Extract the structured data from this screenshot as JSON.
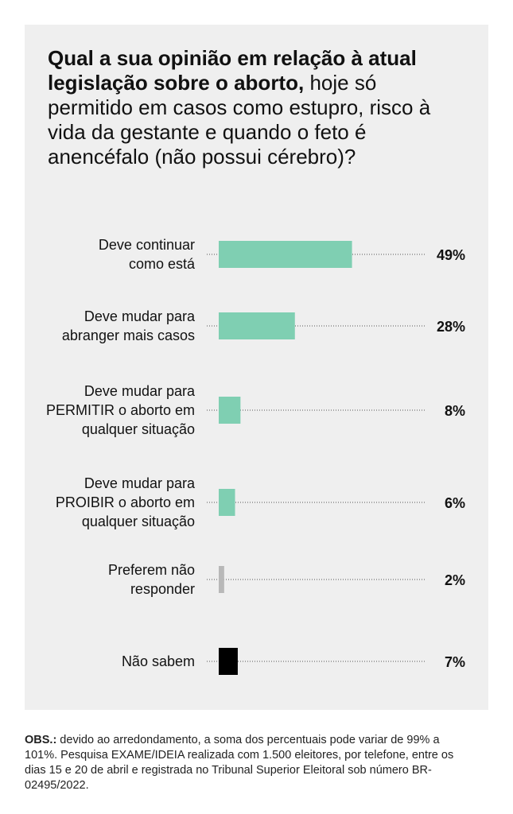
{
  "chart_data": {
    "type": "bar",
    "orientation": "horizontal",
    "title_bold": "Qual a sua opinião em relação à atual legislação sobre o aborto,",
    "title_regular": "hoje só permitido em casos como estupro, risco à vida da gestante e quando o feto é anencéfalo (não possui cérebro)?",
    "categories": [
      [
        "Deve continuar",
        "como está"
      ],
      [
        "Deve mudar para",
        "abranger mais casos"
      ],
      [
        "Deve mudar para",
        "PERMITIR o aborto em",
        "qualquer situação"
      ],
      [
        "Deve mudar para",
        "PROIBIR o aborto em",
        "qualquer situação"
      ],
      [
        "Preferem não",
        "responder"
      ],
      [
        "Não sabem"
      ]
    ],
    "values": [
      49,
      28,
      8,
      6,
      2,
      7
    ],
    "value_labels": [
      "49%",
      "28%",
      "8%",
      "6%",
      "2%",
      "7%"
    ],
    "colors": [
      "#7fcfb2",
      "#7fcfb2",
      "#7fcfb2",
      "#7fcfb2",
      "#b8b8b8",
      "#000000"
    ],
    "xlim": [
      0,
      100
    ],
    "grid": false,
    "legend": "none"
  },
  "note": {
    "label": "OBS.:",
    "text": " devido ao arredondamento, a soma dos percentuais pode variar de 99% a 101%. Pesquisa EXAME/IDEIA realizada com 1.500 eleitores, por telefone, entre os dias 15 e 20 de abril e registrada no Tribunal Superior Eleitoral sob número BR-02495/2022."
  }
}
